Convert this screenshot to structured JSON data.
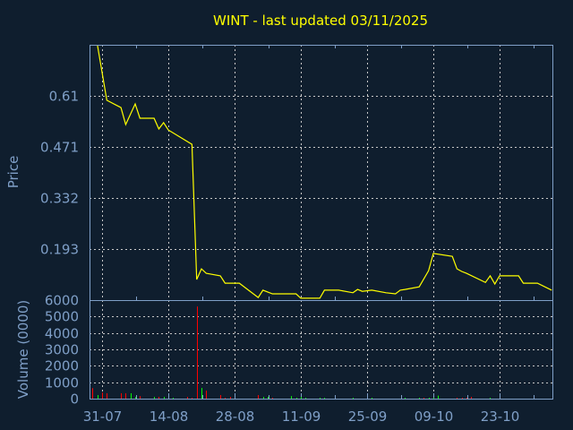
{
  "title": "WINT - last updated 03/11/2025",
  "colors": {
    "background": "#0f1e2e",
    "axis": "#7f9fc7",
    "price_line": "#ffff00",
    "volume_up": "#00ff00",
    "volume_down": "#ff0000",
    "grid": "#c8c8c8"
  },
  "chart_data": [
    {
      "type": "line",
      "title": "WINT - last updated 03/11/2025",
      "ylabel": "Price",
      "ylim": [
        0.054,
        0.749
      ],
      "yticks": [
        "0.61",
        "0.471",
        "0.332",
        "0.193"
      ],
      "grid": true,
      "x": [
        "2025-07-30",
        "2025-08-01",
        "2025-08-04",
        "2025-08-05",
        "2025-08-07",
        "2025-08-08",
        "2025-08-11",
        "2025-08-12",
        "2025-08-13",
        "2025-08-14",
        "2025-08-19",
        "2025-08-20",
        "2025-08-21",
        "2025-08-22",
        "2025-08-25",
        "2025-08-26",
        "2025-08-29",
        "2025-09-02",
        "2025-09-03",
        "2025-09-05",
        "2025-09-10",
        "2025-09-11",
        "2025-09-15",
        "2025-09-16",
        "2025-09-19",
        "2025-09-22",
        "2025-09-23",
        "2025-09-24",
        "2025-09-26",
        "2025-09-29",
        "2025-10-01",
        "2025-10-02",
        "2025-10-03",
        "2025-10-06",
        "2025-10-08",
        "2025-10-09",
        "2025-10-13",
        "2025-10-14",
        "2025-10-15",
        "2025-10-16",
        "2025-10-20",
        "2025-10-21",
        "2025-10-22",
        "2025-10-23",
        "2025-10-27",
        "2025-10-28",
        "2025-10-31",
        "2025-11-03"
      ],
      "y": [
        0.75,
        0.598,
        0.578,
        0.532,
        0.588,
        0.549,
        0.549,
        0.52,
        0.537,
        0.517,
        0.478,
        0.11,
        0.139,
        0.127,
        0.12,
        0.1,
        0.1,
        0.061,
        0.081,
        0.071,
        0.071,
        0.059,
        0.059,
        0.081,
        0.081,
        0.074,
        0.083,
        0.078,
        0.081,
        0.074,
        0.071,
        0.081,
        0.083,
        0.09,
        0.134,
        0.181,
        0.173,
        0.139,
        0.132,
        0.127,
        0.102,
        0.12,
        0.098,
        0.12,
        0.12,
        0.1,
        0.1,
        0.081
      ]
    },
    {
      "type": "bar",
      "ylabel": "Volume (0000)",
      "ylim": [
        0,
        6000
      ],
      "yticks": [
        "0",
        "1000",
        "2000",
        "3000",
        "4000",
        "5000",
        "6000"
      ],
      "grid": true,
      "xticks": [
        "31-07",
        "14-08",
        "28-08",
        "11-09",
        "25-09",
        "09-10",
        "23-10"
      ],
      "bars": [
        {
          "date": "2025-07-29",
          "value": 640,
          "dir": "down"
        },
        {
          "date": "2025-07-30",
          "value": 220,
          "dir": "up"
        },
        {
          "date": "2025-07-31",
          "value": 365,
          "dir": "down"
        },
        {
          "date": "2025-08-01",
          "value": 330,
          "dir": "down"
        },
        {
          "date": "2025-08-04",
          "value": 330,
          "dir": "down"
        },
        {
          "date": "2025-08-05",
          "value": 330,
          "dir": "down"
        },
        {
          "date": "2025-08-06",
          "value": 330,
          "dir": "up"
        },
        {
          "date": "2025-08-07",
          "value": 110,
          "dir": "up"
        },
        {
          "date": "2025-08-08",
          "value": 160,
          "dir": "down"
        },
        {
          "date": "2025-08-11",
          "value": 110,
          "dir": "up"
        },
        {
          "date": "2025-08-12",
          "value": 110,
          "dir": "down"
        },
        {
          "date": "2025-08-13",
          "value": 110,
          "dir": "up"
        },
        {
          "date": "2025-08-15",
          "value": 55,
          "dir": "up"
        },
        {
          "date": "2025-08-18",
          "value": 110,
          "dir": "down"
        },
        {
          "date": "2025-08-19",
          "value": 55,
          "dir": "down"
        },
        {
          "date": "2025-08-20",
          "value": 5610,
          "dir": "down"
        },
        {
          "date": "2025-08-21",
          "value": 650,
          "dir": "up"
        },
        {
          "date": "2025-08-22",
          "value": 490,
          "dir": "down"
        },
        {
          "date": "2025-08-25",
          "value": 220,
          "dir": "down"
        },
        {
          "date": "2025-08-26",
          "value": 55,
          "dir": "down"
        },
        {
          "date": "2025-08-27",
          "value": 110,
          "dir": "down"
        },
        {
          "date": "2025-09-02",
          "value": 220,
          "dir": "down"
        },
        {
          "date": "2025-09-03",
          "value": 110,
          "dir": "up"
        },
        {
          "date": "2025-09-04",
          "value": 110,
          "dir": "up"
        },
        {
          "date": "2025-09-05",
          "value": 55,
          "dir": "down"
        },
        {
          "date": "2025-09-09",
          "value": 160,
          "dir": "up"
        },
        {
          "date": "2025-09-10",
          "value": 55,
          "dir": "up"
        },
        {
          "date": "2025-09-11",
          "value": 110,
          "dir": "up"
        },
        {
          "date": "2025-09-12",
          "value": 55,
          "dir": "up"
        },
        {
          "date": "2025-09-15",
          "value": 55,
          "dir": "up"
        },
        {
          "date": "2025-09-16",
          "value": 55,
          "dir": "up"
        },
        {
          "date": "2025-09-22",
          "value": 55,
          "dir": "up"
        },
        {
          "date": "2025-09-26",
          "value": 55,
          "dir": "up"
        },
        {
          "date": "2025-10-03",
          "value": 55,
          "dir": "up"
        },
        {
          "date": "2025-10-06",
          "value": 55,
          "dir": "up"
        },
        {
          "date": "2025-10-07",
          "value": 55,
          "dir": "down"
        },
        {
          "date": "2025-10-08",
          "value": 55,
          "dir": "up"
        },
        {
          "date": "2025-10-09",
          "value": 55,
          "dir": "up"
        },
        {
          "date": "2025-10-10",
          "value": 185,
          "dir": "up"
        },
        {
          "date": "2025-10-14",
          "value": 55,
          "dir": "down"
        },
        {
          "date": "2025-10-15",
          "value": 55,
          "dir": "down"
        },
        {
          "date": "2025-10-16",
          "value": 55,
          "dir": "down"
        },
        {
          "date": "2025-10-17",
          "value": 110,
          "dir": "down"
        },
        {
          "date": "2025-10-21",
          "value": 55,
          "dir": "up"
        }
      ]
    }
  ]
}
